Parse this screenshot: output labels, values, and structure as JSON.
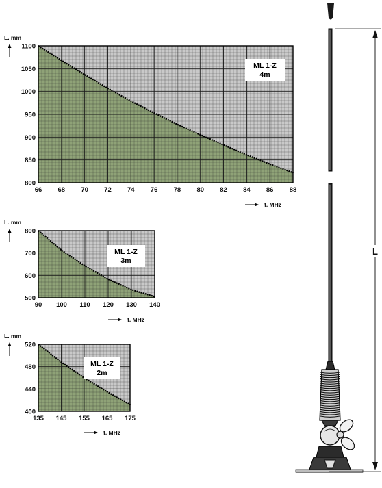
{
  "chart_data": [
    {
      "type": "area",
      "xlabel": "f. MHz",
      "ylabel": "L. mm",
      "annotation": [
        "ML 1-Z",
        "4m"
      ],
      "xlim": [
        66,
        88
      ],
      "ylim": [
        800,
        1100
      ],
      "x_ticks": [
        66,
        68,
        70,
        72,
        74,
        76,
        78,
        80,
        82,
        84,
        86,
        88
      ],
      "y_ticks": [
        800,
        850,
        900,
        950,
        1000,
        1050,
        1100
      ],
      "x": [
        66,
        68,
        70,
        72,
        74,
        76,
        78,
        80,
        82,
        84,
        86,
        88
      ],
      "y": [
        1100,
        1068,
        1037,
        1007,
        979,
        953,
        928,
        905,
        883,
        861,
        841,
        822
      ],
      "colors": {
        "fill": "#8fa277",
        "background": "#c9c9c9",
        "grid": "#1a1a1a"
      }
    },
    {
      "type": "area",
      "xlabel": "f. MHz",
      "ylabel": "L. mm",
      "annotation": [
        "ML 1-Z",
        "3m"
      ],
      "xlim": [
        90,
        140
      ],
      "ylim": [
        500,
        800
      ],
      "x_ticks": [
        90,
        100,
        110,
        120,
        130,
        140
      ],
      "y_ticks": [
        500,
        600,
        700,
        800
      ],
      "x": [
        90,
        100,
        110,
        120,
        130,
        140
      ],
      "y": [
        800,
        712,
        643,
        583,
        536,
        505
      ],
      "colors": {
        "fill": "#8fa277",
        "background": "#c9c9c9",
        "grid": "#1a1a1a"
      }
    },
    {
      "type": "area",
      "xlabel": "f. MHz",
      "ylabel": "L. mm",
      "annotation": [
        "ML 1-Z",
        "2m"
      ],
      "xlim": [
        135,
        175
      ],
      "ylim": [
        400,
        520
      ],
      "x_ticks": [
        135,
        145,
        155,
        165,
        175
      ],
      "y_ticks": [
        400,
        440,
        480,
        520
      ],
      "x": [
        135,
        145,
        155,
        165,
        175
      ],
      "y": [
        520,
        488,
        460,
        435,
        412
      ],
      "colors": {
        "fill": "#8fa277",
        "background": "#c9c9c9",
        "grid": "#1a1a1a"
      }
    }
  ],
  "antenna": {
    "dimension_label": "L"
  }
}
